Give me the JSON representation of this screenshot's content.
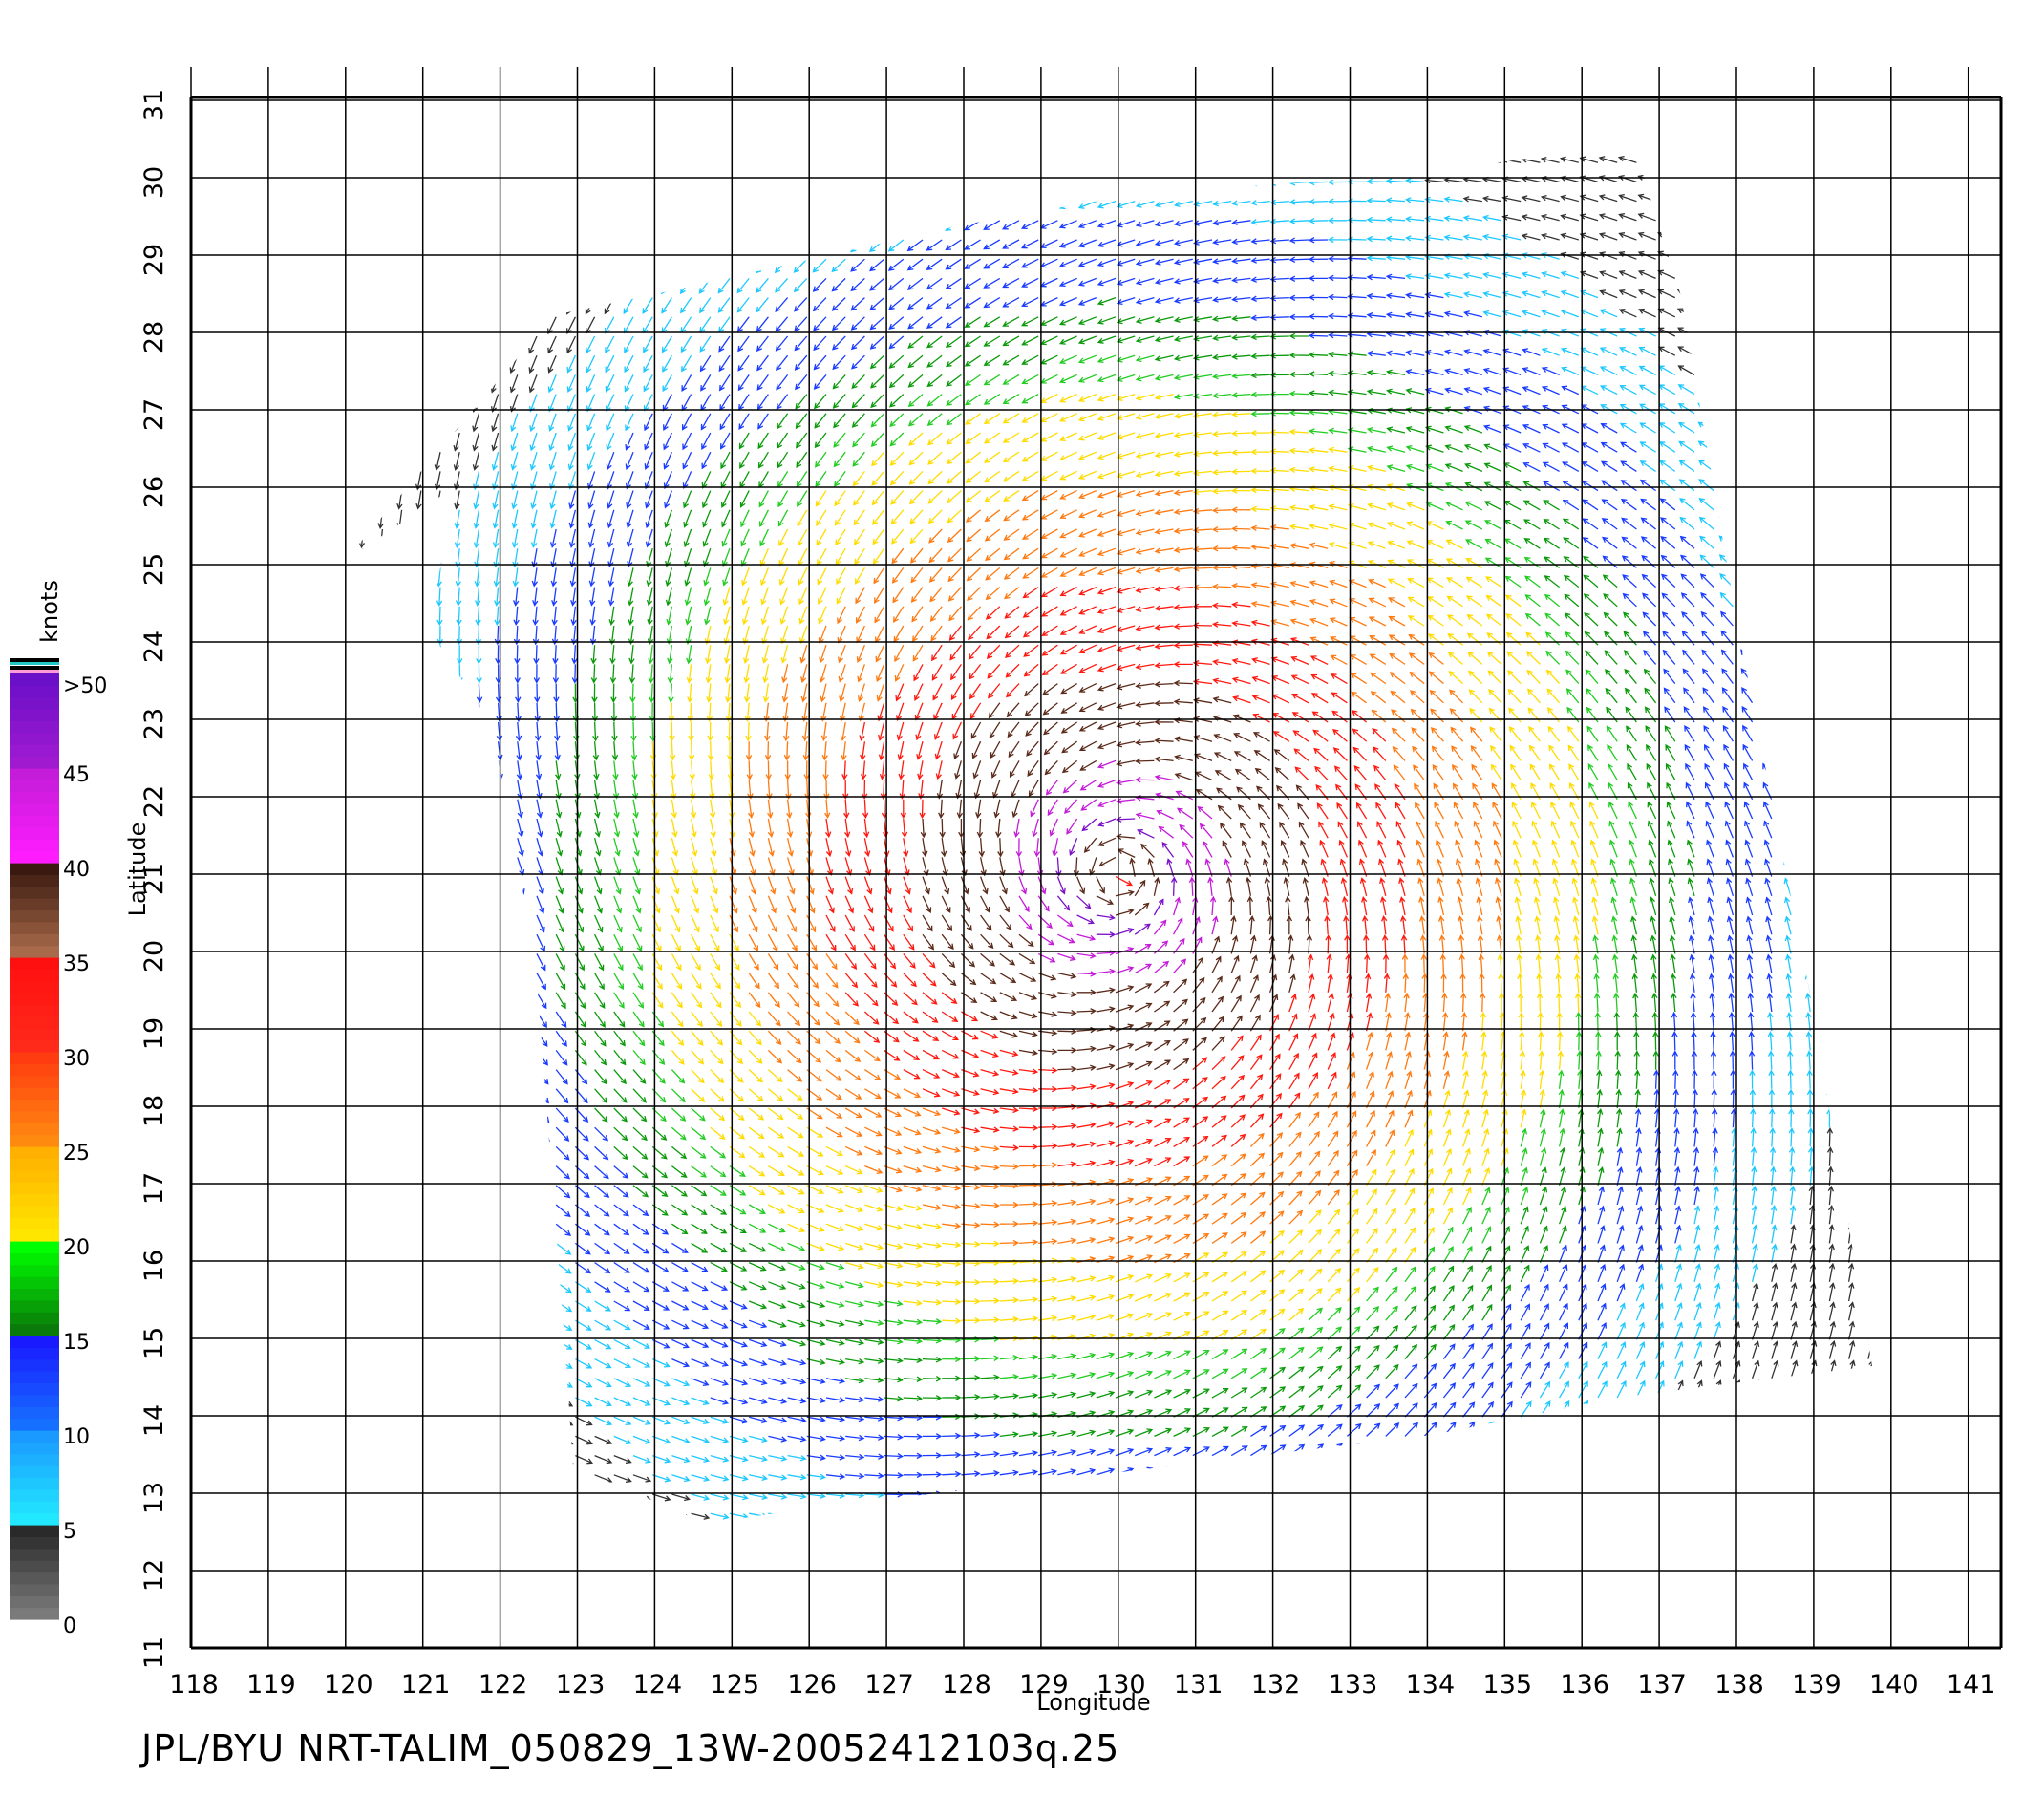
{
  "chart": {
    "x_axis": {
      "label": "Longitude",
      "ticks": [
        "118",
        "119",
        "120",
        "121",
        "122",
        "123",
        "124",
        "125",
        "126",
        "127",
        "128",
        "129",
        "130",
        "131",
        "132",
        "133",
        "134",
        "135",
        "136",
        "137",
        "138",
        "139",
        "140",
        "141"
      ],
      "range": [
        118,
        141
      ]
    },
    "y_axis": {
      "label": "Latitude",
      "ticks": [
        "11",
        "12",
        "13",
        "14",
        "15",
        "16",
        "17",
        "18",
        "19",
        "20",
        "21",
        "22",
        "23",
        "24",
        "25",
        "26",
        "27",
        "28",
        "29",
        "30",
        "31"
      ],
      "range": [
        11,
        31
      ]
    },
    "grid": true
  },
  "colorbar": {
    "title": "knots",
    "labels": [
      ">50",
      "45",
      "40",
      "35",
      "30",
      "25",
      "20",
      "15",
      "10",
      "5",
      "0"
    ],
    "bands": [
      {
        "range": "0-5",
        "colors": [
          "#7a7a7a",
          "#2a2a2a"
        ]
      },
      {
        "range": "5-10",
        "colors": [
          "#22e8ff",
          "#1a9aff"
        ]
      },
      {
        "range": "10-15",
        "colors": [
          "#1670ff",
          "#1a1aff"
        ]
      },
      {
        "range": "15-20",
        "colors": [
          "#0a7a0a",
          "#00ff00"
        ]
      },
      {
        "range": "20-25",
        "colors": [
          "#ffe600",
          "#ffb000"
        ]
      },
      {
        "range": "25-30",
        "colors": [
          "#ff8a10",
          "#ff3c10"
        ]
      },
      {
        "range": "30-35",
        "colors": [
          "#ff2a1a",
          "#ff1010"
        ]
      },
      {
        "range": "35-40",
        "colors": [
          "#a86a4a",
          "#3a1a10"
        ]
      },
      {
        "range": "40-45",
        "colors": [
          "#ff1cff",
          "#c41cd8"
        ]
      },
      {
        "range": "45-50",
        "colors": [
          "#a01ad0",
          "#6a10c8"
        ]
      }
    ]
  },
  "wind_field": {
    "center_lon": 130.0,
    "center_lat": 21.0,
    "units": "knots",
    "sample_spacing_deg": 0.25
  },
  "footer": "JPL/BYU  NRT-TALIM_050829_13W-20052412103q.25"
}
